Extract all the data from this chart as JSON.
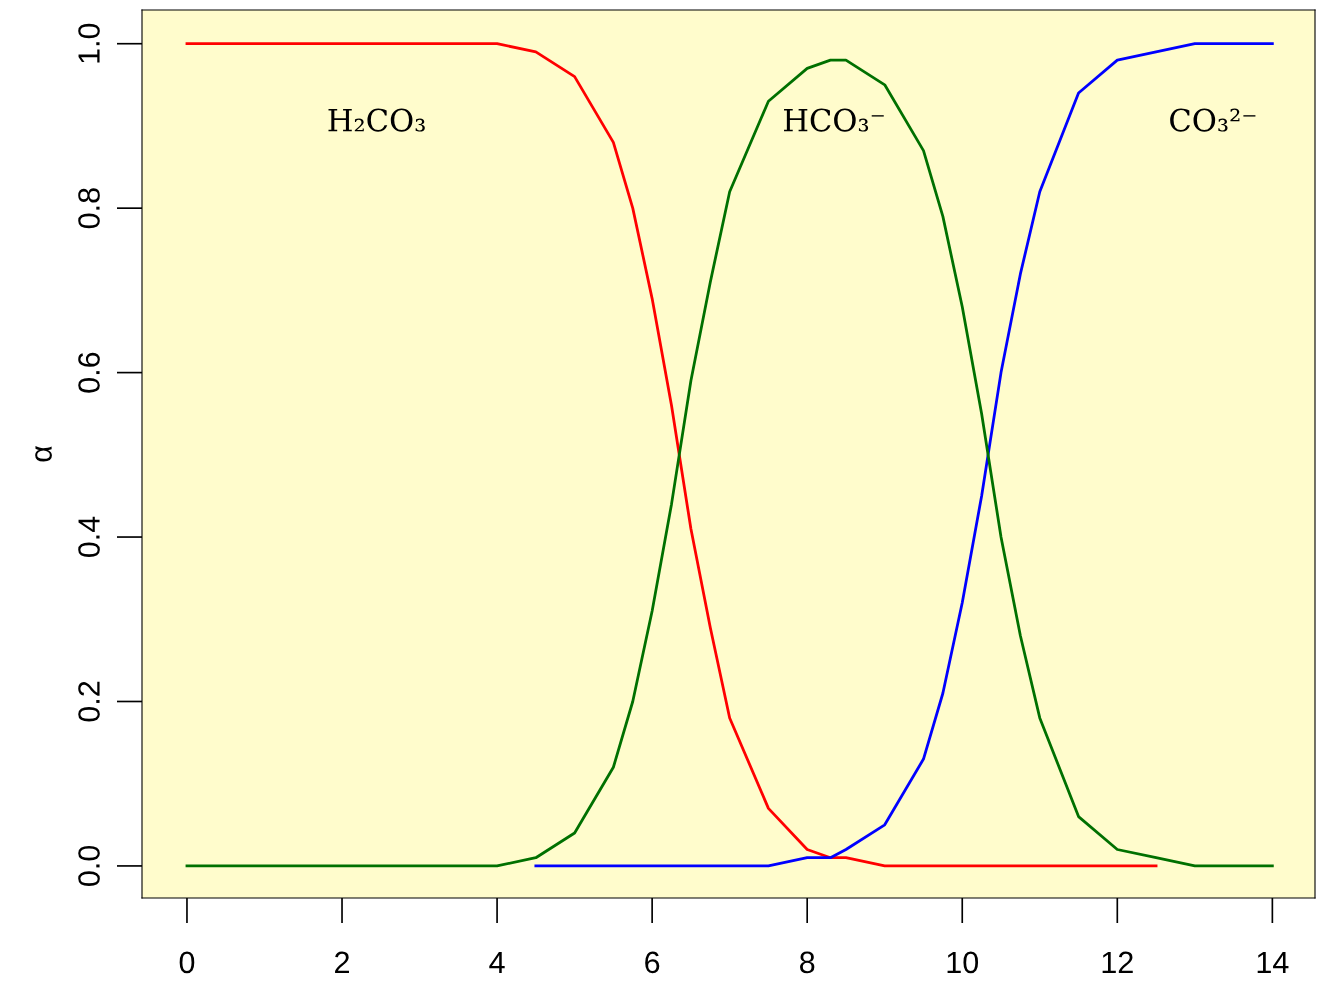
{
  "chart_data": {
    "type": "line",
    "ylabel": "α",
    "x": [
      0,
      1,
      2,
      3,
      3.5,
      4,
      4.5,
      5,
      5.5,
      5.75,
      6,
      6.25,
      6.5,
      6.75,
      7,
      7.5,
      8,
      8.3,
      8.5,
      9,
      9.5,
      9.75,
      10,
      10.25,
      10.5,
      10.75,
      11,
      11.5,
      12,
      12.5,
      13,
      14
    ],
    "series": [
      {
        "color": "#ff0000",
        "values": [
          1,
          1,
          1,
          1,
          1,
          1,
          0.99,
          0.96,
          0.88,
          0.8,
          0.69,
          0.56,
          0.41,
          0.29,
          0.18,
          0.07,
          0.02,
          0.01,
          0.01,
          0,
          0,
          0,
          0,
          0,
          0,
          0,
          0,
          0,
          0,
          0,
          null,
          null
        ]
      },
      {
        "color": "#0000ff",
        "values": [
          null,
          null,
          null,
          null,
          null,
          null,
          0,
          0,
          0,
          0,
          0,
          0,
          0,
          0,
          0,
          0,
          0.01,
          0.01,
          0.02,
          0.05,
          0.13,
          0.21,
          0.32,
          0.45,
          0.6,
          0.72,
          0.82,
          0.94,
          0.98,
          0.99,
          1,
          1
        ]
      },
      {
        "color": "#007000",
        "values": [
          0,
          0,
          0,
          0,
          0,
          0,
          0.01,
          0.04,
          0.12,
          0.2,
          0.31,
          0.44,
          0.59,
          0.71,
          0.82,
          0.93,
          0.97,
          0.98,
          0.98,
          0.95,
          0.87,
          0.79,
          0.68,
          0.55,
          0.4,
          0.28,
          0.18,
          0.06,
          0.02,
          0.01,
          0,
          0
        ]
      }
    ],
    "annotations": [
      "H₂CO₃",
      "HCO₃⁻",
      "CO₃²⁻"
    ],
    "xlim": [
      -0.58,
      14.55
    ],
    "ylim": [
      -0.039,
      1.041
    ],
    "xticks": [
      0,
      2,
      4,
      6,
      8,
      10,
      12,
      14
    ],
    "yticks": [
      {
        "value": 0,
        "label": "0.0"
      },
      {
        "value": 0.2,
        "label": "0.2"
      },
      {
        "value": 0.4,
        "label": "0.4"
      },
      {
        "value": 0.6,
        "label": "0.6"
      },
      {
        "value": 0.8,
        "label": "0.8"
      },
      {
        "value": 1,
        "label": "1.0"
      }
    ],
    "grid": false,
    "marker": "none",
    "line_style": "solid"
  }
}
